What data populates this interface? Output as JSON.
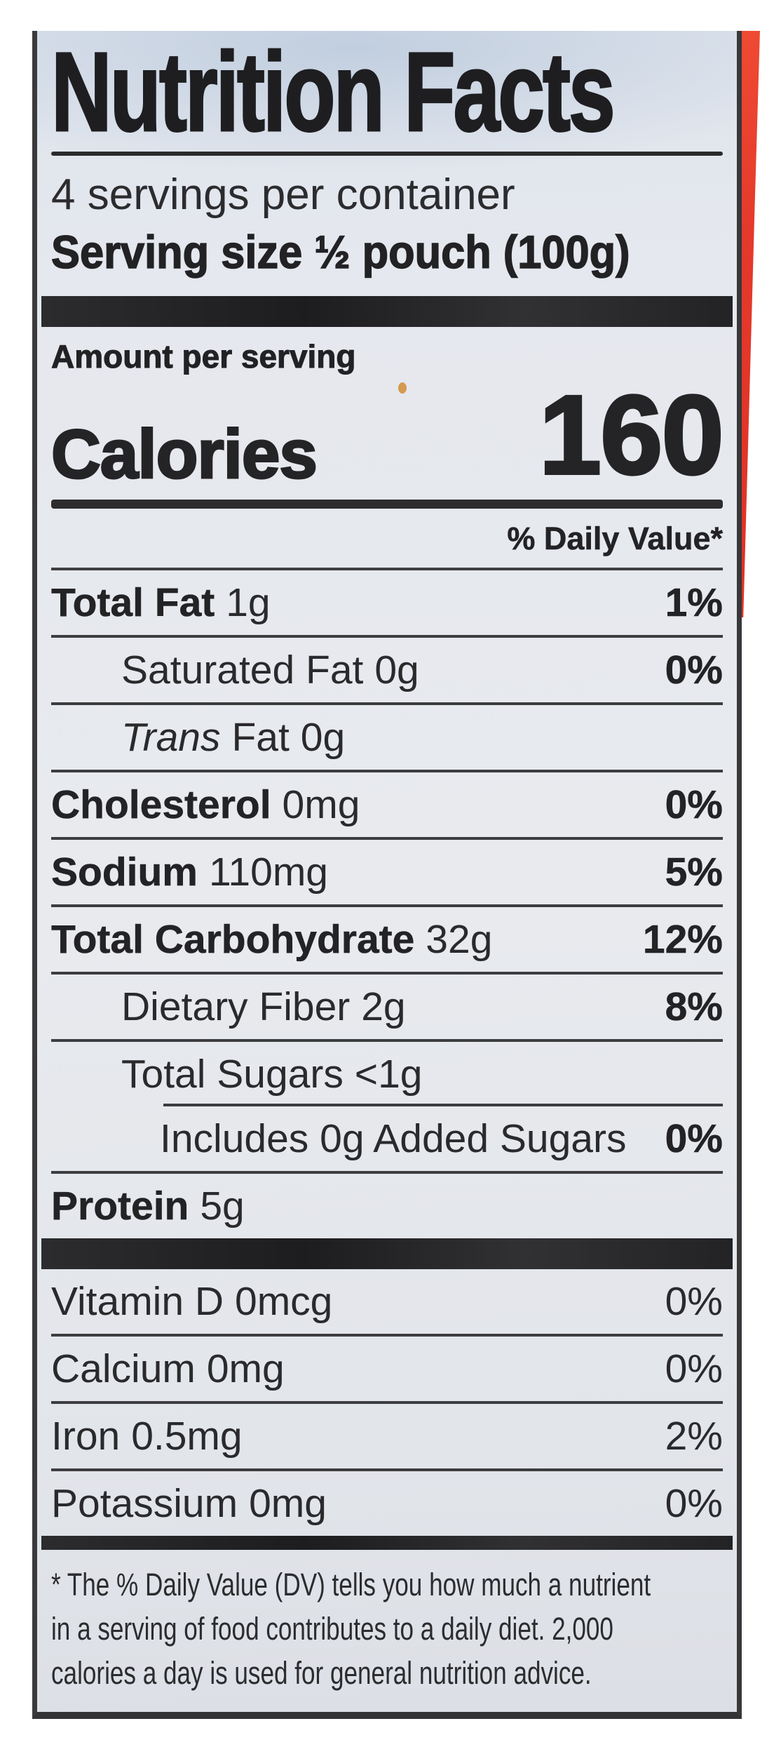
{
  "label": {
    "title": "Nutrition Facts",
    "servings_per_container": "4 servings per container",
    "serving_size_label": "Serving size",
    "serving_size_value": "½ pouch (100g)",
    "amount_per_serving": "Amount per serving",
    "calories_label": "Calories",
    "calories_value": "160",
    "daily_value_header": "% Daily Value*",
    "nutrients": [
      {
        "name": "Total Fat",
        "amount": "1g",
        "dv": "1%"
      },
      {
        "name": "Saturated Fat",
        "amount": "0g",
        "dv": "0%"
      },
      {
        "name_italic": "Trans",
        "name": "Fat",
        "amount": "0g"
      },
      {
        "name": "Cholesterol",
        "amount": "0mg",
        "dv": "0%"
      },
      {
        "name": "Sodium",
        "amount": "110mg",
        "dv": "5%"
      },
      {
        "name": "Total Carbohydrate",
        "amount": "32g",
        "dv": "12%"
      },
      {
        "name": "Dietary Fiber",
        "amount": "2g",
        "dv": "8%"
      },
      {
        "name": "Total Sugars",
        "amount": "<1g"
      },
      {
        "name": "Includes 0g Added Sugars",
        "dv": "0%"
      },
      {
        "name": "Protein",
        "amount": "5g"
      }
    ],
    "micronutrients": [
      {
        "name": "Vitamin D",
        "amount": "0mcg",
        "dv": "0%"
      },
      {
        "name": "Calcium",
        "amount": "0mg",
        "dv": "0%"
      },
      {
        "name": "Iron",
        "amount": "0.5mg",
        "dv": "2%"
      },
      {
        "name": "Potassium",
        "amount": "0mg",
        "dv": "0%"
      }
    ],
    "footnote_lines": [
      "* The % Daily Value (DV) tells you how much a nutrient",
      "in a serving of food contributes to a daily diet. 2,000",
      "calories a day is used for general nutrition advice."
    ]
  },
  "colors": {
    "package_red": "#e4392b",
    "label_background": "#e5e8ee",
    "ink": "#232326",
    "rule": "#3d3d40"
  }
}
